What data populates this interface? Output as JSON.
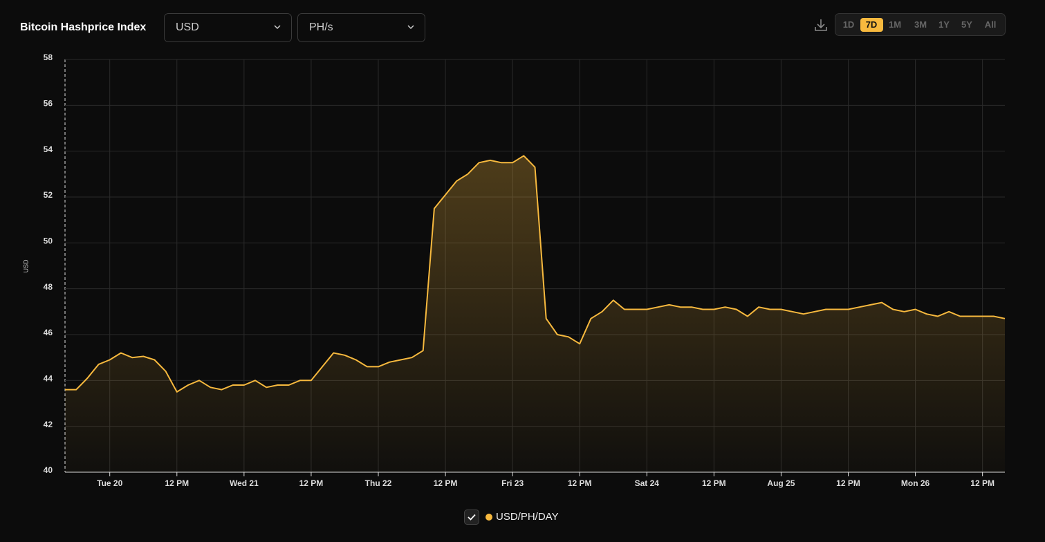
{
  "header": {
    "title": "Bitcoin Hashprice Index",
    "currency": "USD",
    "unit": "PH/s",
    "ranges": [
      "1D",
      "7D",
      "1M",
      "3M",
      "1Y",
      "5Y",
      "All"
    ],
    "active_range": 1
  },
  "chart_data": {
    "type": "area",
    "y_label": "USD",
    "x": [
      -8,
      -6,
      -4,
      -2,
      0,
      2,
      4,
      6,
      8,
      10,
      12,
      14,
      16,
      18,
      20,
      22,
      24,
      26,
      28,
      30,
      32,
      34,
      36,
      38,
      40,
      42,
      44,
      46,
      48,
      50,
      52,
      54,
      56,
      58,
      60,
      62,
      64,
      66,
      68,
      70,
      72,
      74,
      76,
      78,
      80,
      82,
      84,
      86,
      88,
      90,
      92,
      94,
      96,
      98,
      100,
      102,
      104,
      106,
      108,
      110,
      112,
      114,
      116,
      118,
      120,
      122,
      124,
      126,
      128,
      130,
      132,
      134,
      136,
      138,
      140,
      142,
      144,
      146,
      148,
      150,
      152,
      154,
      156,
      158,
      160
    ],
    "series": [
      {
        "name": "USD/PH/DAY",
        "color": "#f7b93e",
        "values": [
          43.6,
          43.6,
          44.1,
          44.7,
          44.9,
          45.2,
          45.0,
          45.05,
          44.9,
          44.4,
          43.5,
          43.8,
          44.0,
          43.7,
          43.6,
          43.8,
          43.8,
          44.0,
          43.7,
          43.8,
          43.8,
          44.0,
          44.0,
          44.6,
          45.2,
          45.1,
          44.9,
          44.6,
          44.6,
          44.8,
          44.9,
          45.0,
          45.3,
          51.5,
          52.1,
          52.7,
          53.0,
          53.5,
          53.6,
          53.5,
          53.5,
          53.8,
          53.3,
          46.7,
          46.0,
          45.9,
          45.6,
          46.7,
          47.0,
          47.5,
          47.1,
          47.1,
          47.1,
          47.2,
          47.3,
          47.2,
          47.2,
          47.1,
          47.1,
          47.2,
          47.1,
          46.8,
          47.2,
          47.1,
          47.1,
          47.0,
          46.9,
          47.0,
          47.1,
          47.1,
          47.1,
          47.2,
          47.3,
          47.4,
          47.1,
          47.0,
          47.1,
          46.9,
          46.8,
          47.0,
          46.8,
          46.8,
          46.8,
          46.8,
          46.7
        ]
      }
    ],
    "xlim": [
      -8,
      160
    ],
    "xticks": [
      {
        "value": 0,
        "label": "Tue 20"
      },
      {
        "value": 12,
        "label": "12 PM"
      },
      {
        "value": 24,
        "label": "Wed 21"
      },
      {
        "value": 36,
        "label": "12 PM"
      },
      {
        "value": 48,
        "label": "Thu 22"
      },
      {
        "value": 60,
        "label": "12 PM"
      },
      {
        "value": 72,
        "label": "Fri 23"
      },
      {
        "value": 84,
        "label": "12 PM"
      },
      {
        "value": 96,
        "label": "Sat 24"
      },
      {
        "value": 108,
        "label": "12 PM"
      },
      {
        "value": 120,
        "label": "Aug 25"
      },
      {
        "value": 132,
        "label": "12 PM"
      },
      {
        "value": 144,
        "label": "Mon 26"
      },
      {
        "value": 156,
        "label": "12 PM"
      }
    ],
    "ylim": [
      40,
      58
    ],
    "yticks": [
      40,
      42,
      44,
      46,
      48,
      50,
      52,
      54,
      56,
      58
    ],
    "grid": true
  }
}
